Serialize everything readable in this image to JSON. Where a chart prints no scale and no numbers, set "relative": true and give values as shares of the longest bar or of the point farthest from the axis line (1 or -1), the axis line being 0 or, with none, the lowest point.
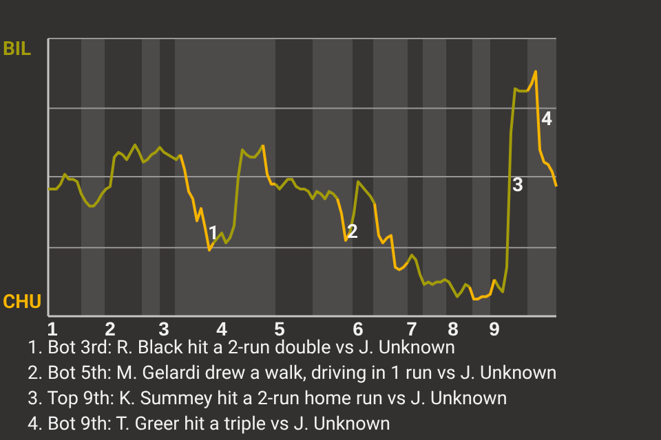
{
  "chart_data": {
    "type": "line",
    "relative": true,
    "categories": [
      null,
      "1",
      null,
      null,
      null,
      null,
      null,
      null,
      null,
      null,
      null,
      null,
      null,
      null,
      null,
      "2",
      null,
      null,
      null,
      null,
      null,
      null,
      null,
      null,
      null,
      null,
      null,
      null,
      "3",
      null,
      null,
      null,
      null,
      null,
      null,
      null,
      null,
      null,
      null,
      null,
      null,
      null,
      "4",
      null,
      null,
      null,
      null,
      null,
      null,
      null,
      null,
      null,
      null,
      null,
      null,
      null,
      "5",
      null,
      null,
      null,
      null,
      null,
      null,
      null,
      null,
      null,
      null,
      null,
      null,
      null,
      null,
      null,
      null,
      null,
      null,
      "6",
      null,
      null,
      null,
      null,
      null,
      null,
      null,
      null,
      null,
      null,
      null,
      null,
      "7",
      null,
      null,
      null,
      null,
      null,
      null,
      null,
      null,
      null,
      "8",
      null,
      null,
      null,
      null,
      null,
      null,
      null,
      null,
      null,
      "9",
      null,
      null,
      null,
      null,
      null,
      null,
      null,
      null,
      null,
      null,
      null,
      null,
      null,
      null,
      null
    ],
    "series": [
      {
        "color": "#a39c0a",
        "values": [
          0.52,
          0.52,
          0.52,
          0.54,
          0.58,
          0.56,
          0.56,
          0.55,
          0.5,
          0.47,
          0.45,
          0.45,
          0.47,
          0.5,
          0.52,
          0.53,
          0.65,
          0.67,
          0.66,
          0.64,
          0.67,
          0.7,
          0.67,
          0.63,
          0.64,
          0.66,
          0.67,
          0.69,
          0.67,
          0.66,
          0.65,
          0.64,
          0.66,
          null,
          null,
          null,
          null,
          null,
          null,
          null,
          0.3,
          0.32,
          0.34,
          0.3,
          0.32,
          0.37,
          0.57,
          0.68,
          0.66,
          0.65,
          0.65,
          0.67,
          0.7,
          null,
          null,
          0.54,
          0.52,
          0.54,
          0.56,
          0.56,
          0.53,
          0.52,
          0.52,
          0.51,
          0.48,
          0.51,
          0.5,
          0.48,
          0.51,
          0.5,
          0.48,
          null,
          null,
          0.34,
          0.42,
          0.55,
          0.53,
          0.51,
          0.49,
          0.46,
          null,
          null,
          null,
          null,
          null,
          null,
          null,
          0.22,
          0.25,
          0.23,
          0.17,
          0.13,
          0.14,
          0.13,
          0.14,
          0.14,
          0.15,
          0.14,
          0.11,
          0.08,
          0.1,
          0.13,
          0.12,
          null,
          null,
          null,
          null,
          null,
          0.15,
          0.12,
          0.1,
          0.2,
          0.75,
          0.93,
          0.92,
          0.92,
          0.92,
          null,
          null,
          null,
          null,
          null,
          null,
          null
        ]
      },
      {
        "color": "#f5b400",
        "values": [
          null,
          null,
          null,
          null,
          null,
          null,
          null,
          null,
          null,
          null,
          null,
          null,
          null,
          null,
          null,
          null,
          null,
          null,
          null,
          null,
          null,
          null,
          null,
          null,
          null,
          null,
          null,
          null,
          null,
          null,
          null,
          null,
          0.66,
          0.6,
          0.51,
          0.48,
          0.39,
          0.44,
          0.36,
          0.27,
          0.3,
          null,
          null,
          null,
          null,
          null,
          null,
          null,
          null,
          null,
          null,
          null,
          0.7,
          0.58,
          0.54,
          0.54,
          null,
          null,
          null,
          null,
          null,
          null,
          null,
          null,
          null,
          null,
          null,
          null,
          null,
          null,
          0.48,
          0.42,
          0.31,
          0.34,
          null,
          null,
          null,
          null,
          null,
          0.46,
          0.33,
          0.3,
          0.32,
          0.33,
          0.2,
          0.19,
          0.2,
          0.22,
          null,
          null,
          null,
          null,
          null,
          null,
          null,
          null,
          null,
          null,
          null,
          null,
          null,
          null,
          0.12,
          0.07,
          0.07,
          0.08,
          0.08,
          0.09,
          0.15,
          null,
          null,
          null,
          null,
          null,
          null,
          null,
          0.92,
          0.95,
          1,
          0.68,
          0.63,
          0.62,
          0.59,
          0.53
        ]
      }
    ],
    "ref_lines": [
      {
        "axis": "y",
        "value": 0.28,
        "color": "#9a9896"
      },
      {
        "axis": "y",
        "value": 0.57,
        "color": "#9a9896"
      },
      {
        "axis": "y",
        "value": 0.85,
        "color": "#9a9896"
      }
    ],
    "annotations": [
      "BIL",
      "CHU",
      "1",
      "2",
      "3",
      "4",
      "1. Bot 3rd: R. Black hit a 2-run double vs J. Unknown",
      "2. Bot 5th: M. Gelardi drew a walk, driving in 1 run vs J. Unknown",
      "3. Top 9th: K. Summey hit a 2-run home run vs J. Unknown",
      "4. Bot 9th: T. Greer hit a triple vs J. Unknown"
    ]
  }
}
